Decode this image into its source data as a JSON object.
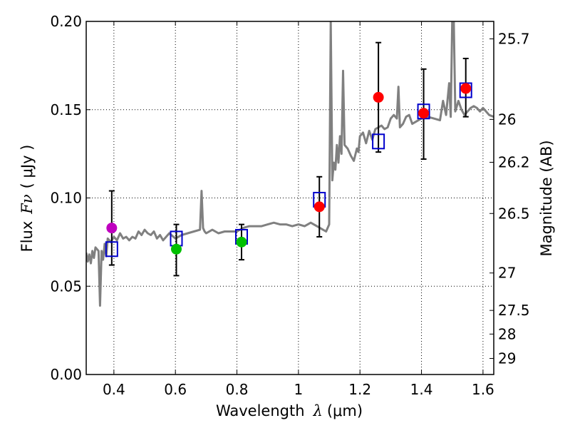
{
  "chart_data": {
    "type": "scatter",
    "xlabel": "Wavelength",
    "xlabel_symbol": "λ",
    "xlabel_unit": "(μm)",
    "ylabel": "Flux",
    "ylabel_symbol": "Fν",
    "ylabel_unit": "( μJy )",
    "y2label": "Magnitude (AB)",
    "xlim": [
      0.31,
      1.635
    ],
    "ylim": [
      0.0,
      0.2
    ],
    "grid": true,
    "x_ticks": [
      {
        "value": 0.4,
        "label": "0.4"
      },
      {
        "value": 0.6,
        "label": "0.6"
      },
      {
        "value": 0.8,
        "label": "0.8"
      },
      {
        "value": 1.0,
        "label": "1"
      },
      {
        "value": 1.2,
        "label": "1.2"
      },
      {
        "value": 1.4,
        "label": "1.4"
      },
      {
        "value": 1.6,
        "label": "1.6"
      }
    ],
    "y_ticks": [
      {
        "value": 0.0,
        "label": "0.00"
      },
      {
        "value": 0.05,
        "label": "0.05"
      },
      {
        "value": 0.1,
        "label": "0.10"
      },
      {
        "value": 0.15,
        "label": "0.15"
      },
      {
        "value": 0.2,
        "label": "0.20"
      }
    ],
    "mag_ticks": [
      {
        "value": 0.1901,
        "label": "25.7"
      },
      {
        "value": 0.1445,
        "label": "26"
      },
      {
        "value": 0.1202,
        "label": "26.2"
      },
      {
        "value": 0.0912,
        "label": "26.5"
      },
      {
        "value": 0.0575,
        "label": "27"
      },
      {
        "value": 0.0363,
        "label": "27.5"
      },
      {
        "value": 0.0229,
        "label": "28"
      },
      {
        "value": 0.0091,
        "label": "29"
      }
    ],
    "observed": [
      {
        "x": 0.393,
        "y": 0.083,
        "err_low": 0.062,
        "err_high": 0.104,
        "color": "#bf00bf"
      },
      {
        "x": 0.603,
        "y": 0.071,
        "err_low": 0.056,
        "err_high": 0.085,
        "color": "#00c000"
      },
      {
        "x": 0.815,
        "y": 0.075,
        "err_low": 0.065,
        "err_high": 0.085,
        "color": "#00c000"
      },
      {
        "x": 1.068,
        "y": 0.095,
        "err_low": 0.078,
        "err_high": 0.112,
        "color": "#ff0000"
      },
      {
        "x": 1.26,
        "y": 0.157,
        "err_low": 0.126,
        "err_high": 0.188,
        "color": "#ff0000"
      },
      {
        "x": 1.407,
        "y": 0.148,
        "err_low": 0.122,
        "err_high": 0.173,
        "color": "#ff0000"
      },
      {
        "x": 1.544,
        "y": 0.162,
        "err_low": 0.146,
        "err_high": 0.179,
        "color": "#ff0000"
      }
    ],
    "model_points": [
      {
        "x": 0.393,
        "y": 0.071
      },
      {
        "x": 0.603,
        "y": 0.077
      },
      {
        "x": 0.815,
        "y": 0.078
      },
      {
        "x": 1.068,
        "y": 0.099
      },
      {
        "x": 1.26,
        "y": 0.132
      },
      {
        "x": 1.407,
        "y": 0.149
      },
      {
        "x": 1.544,
        "y": 0.161
      }
    ],
    "sed_line": {
      "color": "#808080",
      "x": [
        0.31,
        0.315,
        0.32,
        0.325,
        0.33,
        0.335,
        0.34,
        0.35,
        0.355,
        0.36,
        0.365,
        0.37,
        0.375,
        0.38,
        0.39,
        0.4,
        0.41,
        0.42,
        0.43,
        0.44,
        0.45,
        0.46,
        0.47,
        0.48,
        0.49,
        0.5,
        0.51,
        0.52,
        0.53,
        0.54,
        0.55,
        0.56,
        0.57,
        0.58,
        0.6,
        0.62,
        0.64,
        0.66,
        0.68,
        0.685,
        0.69,
        0.695,
        0.7,
        0.72,
        0.74,
        0.76,
        0.78,
        0.8,
        0.82,
        0.84,
        0.86,
        0.88,
        0.9,
        0.92,
        0.94,
        0.96,
        0.98,
        1.0,
        1.02,
        1.04,
        1.06,
        1.08,
        1.09,
        1.1,
        1.105,
        1.11,
        1.115,
        1.12,
        1.125,
        1.13,
        1.135,
        1.14,
        1.145,
        1.15,
        1.16,
        1.17,
        1.18,
        1.19,
        1.195,
        1.2,
        1.21,
        1.22,
        1.23,
        1.24,
        1.25,
        1.26,
        1.27,
        1.28,
        1.29,
        1.3,
        1.31,
        1.32,
        1.325,
        1.33,
        1.34,
        1.35,
        1.36,
        1.37,
        1.38,
        1.39,
        1.4,
        1.42,
        1.44,
        1.46,
        1.47,
        1.48,
        1.49,
        1.495,
        1.5,
        1.505,
        1.51,
        1.52,
        1.53,
        1.54,
        1.55,
        1.56,
        1.57,
        1.58,
        1.59,
        1.6,
        1.61,
        1.62,
        1.635
      ],
      "y": [
        0.069,
        0.064,
        0.068,
        0.063,
        0.07,
        0.066,
        0.072,
        0.07,
        0.039,
        0.07,
        0.065,
        0.074,
        0.067,
        0.077,
        0.075,
        0.078,
        0.076,
        0.08,
        0.077,
        0.078,
        0.076,
        0.078,
        0.077,
        0.081,
        0.079,
        0.082,
        0.08,
        0.079,
        0.081,
        0.077,
        0.079,
        0.076,
        0.078,
        0.08,
        0.077,
        0.079,
        0.08,
        0.081,
        0.082,
        0.104,
        0.083,
        0.081,
        0.08,
        0.082,
        0.08,
        0.081,
        0.081,
        0.081,
        0.083,
        0.084,
        0.084,
        0.084,
        0.085,
        0.086,
        0.085,
        0.085,
        0.084,
        0.085,
        0.084,
        0.086,
        0.084,
        0.082,
        0.081,
        0.085,
        0.2,
        0.11,
        0.12,
        0.116,
        0.13,
        0.12,
        0.135,
        0.125,
        0.172,
        0.13,
        0.128,
        0.124,
        0.121,
        0.128,
        0.126,
        0.135,
        0.137,
        0.131,
        0.138,
        0.133,
        0.139,
        0.14,
        0.141,
        0.139,
        0.14,
        0.145,
        0.147,
        0.145,
        0.163,
        0.14,
        0.142,
        0.146,
        0.147,
        0.142,
        0.143,
        0.144,
        0.145,
        0.146,
        0.145,
        0.144,
        0.155,
        0.147,
        0.165,
        0.146,
        0.2,
        0.2,
        0.149,
        0.155,
        0.15,
        0.147,
        0.149,
        0.151,
        0.152,
        0.151,
        0.149,
        0.151,
        0.149,
        0.147,
        0.146
      ]
    }
  }
}
